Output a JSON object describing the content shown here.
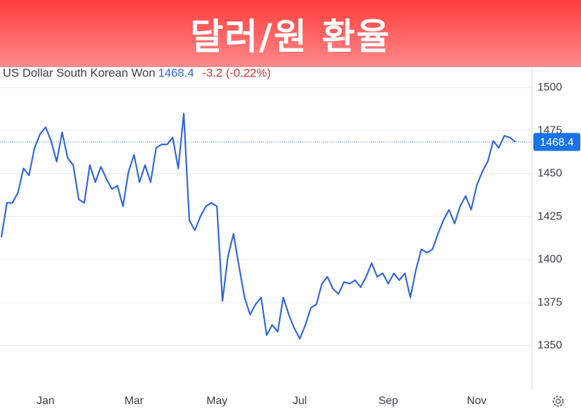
{
  "chart_data": {
    "type": "line",
    "title": "달러/원 환율",
    "current_value": 1468.4,
    "change": "-3.2 (-0.22%)",
    "categories": [
      null,
      null,
      null,
      null,
      null,
      null,
      null,
      null,
      "Jan",
      null,
      null,
      null,
      null,
      null,
      null,
      null,
      null,
      null,
      null,
      null,
      null,
      null,
      null,
      null,
      "Mar",
      null,
      null,
      null,
      null,
      null,
      null,
      null,
      null,
      null,
      null,
      null,
      null,
      null,
      null,
      "May",
      null,
      null,
      null,
      null,
      null,
      null,
      null,
      null,
      null,
      null,
      null,
      null,
      null,
      null,
      "Jul",
      null,
      null,
      null,
      null,
      null,
      null,
      null,
      null,
      null,
      null,
      null,
      null,
      null,
      null,
      null,
      "Sep",
      null,
      null,
      null,
      null,
      null,
      null,
      null,
      null,
      null,
      null,
      null,
      null,
      null,
      null,
      null,
      "Nov",
      null,
      null,
      null,
      null,
      null,
      null,
      null
    ],
    "series": [
      {
        "name": "US Dollar South Korean Won",
        "color": "#2f66e0",
        "values": [
          1413,
          1433,
          1433,
          1439,
          1453,
          1449,
          1465,
          1473,
          1477,
          1469,
          1457,
          1474,
          1459,
          1455,
          1435,
          1433,
          1455,
          1445,
          1454,
          1447,
          1441,
          1443,
          1431,
          1451,
          1461,
          1445,
          1455,
          1445,
          1465,
          1467,
          1467,
          1471,
          1453,
          1485,
          1423,
          1417,
          1425,
          1431,
          1433,
          1431,
          1376,
          1402,
          1415,
          1396,
          1378,
          1368,
          1374,
          1378,
          1356,
          1362,
          1358,
          1378,
          1368,
          1360,
          1354,
          1362,
          1372,
          1374,
          1386,
          1390,
          1383,
          1380,
          1387,
          1386,
          1388,
          1384,
          1390,
          1398,
          1390,
          1392,
          1386,
          1392,
          1388,
          1392,
          1378,
          1394,
          1406,
          1404,
          1406,
          1415,
          1423,
          1429,
          1421,
          1431,
          1437,
          1429,
          1443,
          1451,
          1457,
          1469,
          1465,
          1472,
          1471,
          1468.4
        ]
      }
    ],
    "ylim": [
      1324,
      1512
    ],
    "yticks": [
      1350,
      1375,
      1400,
      1425,
      1450,
      1475,
      1500
    ],
    "grid": true
  }
}
